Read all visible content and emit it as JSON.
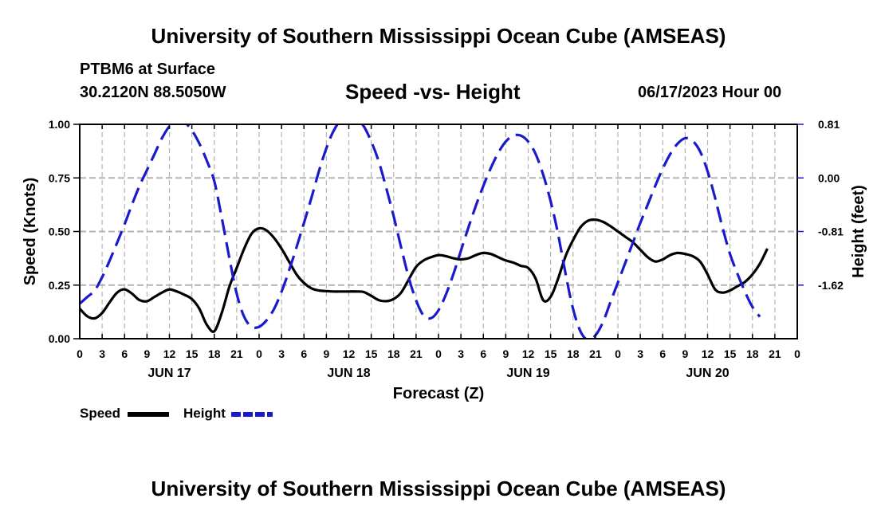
{
  "header": {
    "title": "University of Southern Mississippi Ocean Cube (AMSEAS)",
    "station": "PTBM6 at Surface",
    "coords": "30.2120N  88.5050W",
    "subtitle": "Speed -vs- Height",
    "run_time": "06/17/2023 Hour 00"
  },
  "footer": {
    "title": "University of Southern Mississippi Ocean Cube (AMSEAS)"
  },
  "legend": {
    "speed_label": "Speed",
    "height_label": "Height"
  },
  "colors": {
    "speed": "#000000",
    "height": "#1a1acc",
    "grid": "#b4b4b4"
  },
  "chart_data": {
    "type": "line",
    "title": "Speed -vs- Height",
    "xlabel": "Forecast (Z)",
    "ylabel": "Speed (Knots)",
    "y2label": "Height (feet)",
    "x_range_hours": [
      0,
      96
    ],
    "x_tick_step_hours": 3,
    "x_tick_labels": [
      "0",
      "3",
      "6",
      "9",
      "12",
      "15",
      "18",
      "21",
      "0",
      "3",
      "6",
      "9",
      "12",
      "15",
      "18",
      "21",
      "0",
      "3",
      "6",
      "9",
      "12",
      "15",
      "18",
      "21",
      "0",
      "3",
      "6",
      "9",
      "12",
      "15",
      "18",
      "21",
      "0"
    ],
    "day_labels": [
      {
        "label": "JUN 17",
        "hour": 12
      },
      {
        "label": "JUN 18",
        "hour": 36
      },
      {
        "label": "JUN 19",
        "hour": 60
      },
      {
        "label": "JUN 20",
        "hour": 84
      }
    ],
    "ylim": [
      0,
      1.0
    ],
    "y_ticks": [
      0.0,
      0.25,
      0.5,
      0.75,
      1.0
    ],
    "y_tick_labels": [
      "0.00",
      "0.25",
      "0.50",
      "0.75",
      "1.00"
    ],
    "y2_ticks": [
      -1.62,
      -0.81,
      0.0,
      0.81
    ],
    "y2_tick_labels": [
      "-1.62",
      "-0.81",
      "0.00",
      "0.81"
    ],
    "grid": true,
    "legend_position": "bottom-left",
    "series": [
      {
        "name": "Speed",
        "axis": "left",
        "style": "solid",
        "points": [
          [
            0,
            0.14
          ],
          [
            1,
            0.105
          ],
          [
            2,
            0.095
          ],
          [
            3,
            0.12
          ],
          [
            4,
            0.17
          ],
          [
            5,
            0.215
          ],
          [
            6,
            0.23
          ],
          [
            7,
            0.21
          ],
          [
            8,
            0.18
          ],
          [
            9,
            0.175
          ],
          [
            10,
            0.195
          ],
          [
            11,
            0.215
          ],
          [
            12,
            0.23
          ],
          [
            13,
            0.22
          ],
          [
            14,
            0.205
          ],
          [
            15,
            0.185
          ],
          [
            16,
            0.14
          ],
          [
            17,
            0.065
          ],
          [
            18,
            0.035
          ],
          [
            19,
            0.12
          ],
          [
            20,
            0.24
          ],
          [
            21,
            0.33
          ],
          [
            22,
            0.42
          ],
          [
            23,
            0.49
          ],
          [
            24,
            0.515
          ],
          [
            25,
            0.505
          ],
          [
            26,
            0.47
          ],
          [
            27,
            0.42
          ],
          [
            28,
            0.36
          ],
          [
            29,
            0.3
          ],
          [
            30,
            0.26
          ],
          [
            31,
            0.235
          ],
          [
            32,
            0.225
          ],
          [
            33,
            0.222
          ],
          [
            34,
            0.22
          ],
          [
            35,
            0.22
          ],
          [
            36,
            0.22
          ],
          [
            37,
            0.22
          ],
          [
            38,
            0.218
          ],
          [
            39,
            0.2
          ],
          [
            40,
            0.18
          ],
          [
            41,
            0.175
          ],
          [
            42,
            0.185
          ],
          [
            43,
            0.215
          ],
          [
            44,
            0.275
          ],
          [
            45,
            0.335
          ],
          [
            46,
            0.365
          ],
          [
            47,
            0.38
          ],
          [
            48,
            0.39
          ],
          [
            49,
            0.385
          ],
          [
            50,
            0.375
          ],
          [
            51,
            0.37
          ],
          [
            52,
            0.375
          ],
          [
            53,
            0.39
          ],
          [
            54,
            0.4
          ],
          [
            55,
            0.395
          ],
          [
            56,
            0.38
          ],
          [
            57,
            0.365
          ],
          [
            58,
            0.355
          ],
          [
            59,
            0.34
          ],
          [
            60,
            0.33
          ],
          [
            61,
            0.28
          ],
          [
            62,
            0.18
          ],
          [
            63,
            0.195
          ],
          [
            64,
            0.28
          ],
          [
            65,
            0.385
          ],
          [
            66,
            0.46
          ],
          [
            67,
            0.52
          ],
          [
            68,
            0.55
          ],
          [
            69,
            0.555
          ],
          [
            70,
            0.545
          ],
          [
            71,
            0.525
          ],
          [
            72,
            0.5
          ],
          [
            73,
            0.475
          ],
          [
            74,
            0.45
          ],
          [
            75,
            0.415
          ],
          [
            76,
            0.38
          ],
          [
            77,
            0.36
          ],
          [
            78,
            0.37
          ],
          [
            79,
            0.39
          ],
          [
            80,
            0.4
          ],
          [
            81,
            0.395
          ],
          [
            82,
            0.385
          ],
          [
            83,
            0.36
          ],
          [
            84,
            0.3
          ],
          [
            85,
            0.23
          ],
          [
            86,
            0.215
          ],
          [
            87,
            0.225
          ],
          [
            88,
            0.245
          ],
          [
            89,
            0.265
          ],
          [
            90,
            0.3
          ],
          [
            91,
            0.35
          ],
          [
            92,
            0.42
          ]
        ]
      },
      {
        "name": "Height",
        "axis": "right",
        "style": "dashed",
        "points": [
          [
            0,
            -1.9
          ],
          [
            1,
            -1.8
          ],
          [
            2,
            -1.7
          ],
          [
            3,
            -1.5
          ],
          [
            4,
            -1.25
          ],
          [
            5,
            -0.98
          ],
          [
            6,
            -0.7
          ],
          [
            7,
            -0.4
          ],
          [
            8,
            -0.12
          ],
          [
            9,
            0.12
          ],
          [
            10,
            0.36
          ],
          [
            11,
            0.6
          ],
          [
            12,
            0.78
          ],
          [
            13,
            0.86
          ],
          [
            14,
            0.84
          ],
          [
            15,
            0.72
          ],
          [
            16,
            0.52
          ],
          [
            17,
            0.26
          ],
          [
            18,
            -0.05
          ],
          [
            19,
            -0.6
          ],
          [
            20,
            -1.2
          ],
          [
            21,
            -1.75
          ],
          [
            22,
            -2.1
          ],
          [
            23,
            -2.25
          ],
          [
            24,
            -2.25
          ],
          [
            25,
            -2.15
          ],
          [
            26,
            -1.98
          ],
          [
            27,
            -1.72
          ],
          [
            28,
            -1.4
          ],
          [
            29,
            -1.05
          ],
          [
            30,
            -0.68
          ],
          [
            31,
            -0.3
          ],
          [
            32,
            0.1
          ],
          [
            33,
            0.45
          ],
          [
            34,
            0.72
          ],
          [
            35,
            0.88
          ],
          [
            36,
            0.93
          ],
          [
            37,
            0.9
          ],
          [
            38,
            0.78
          ],
          [
            39,
            0.55
          ],
          [
            40,
            0.25
          ],
          [
            41,
            -0.15
          ],
          [
            42,
            -0.58
          ],
          [
            43,
            -1.05
          ],
          [
            44,
            -1.5
          ],
          [
            45,
            -1.85
          ],
          [
            46,
            -2.08
          ],
          [
            47,
            -2.12
          ],
          [
            48,
            -2.0
          ],
          [
            49,
            -1.76
          ],
          [
            50,
            -1.45
          ],
          [
            51,
            -1.1
          ],
          [
            52,
            -0.75
          ],
          [
            53,
            -0.42
          ],
          [
            54,
            -0.12
          ],
          [
            55,
            0.15
          ],
          [
            56,
            0.38
          ],
          [
            57,
            0.55
          ],
          [
            58,
            0.64
          ],
          [
            59,
            0.64
          ],
          [
            60,
            0.55
          ],
          [
            61,
            0.36
          ],
          [
            62,
            0.05
          ],
          [
            63,
            -0.35
          ],
          [
            64,
            -0.85
          ],
          [
            65,
            -1.45
          ],
          [
            66,
            -1.98
          ],
          [
            67,
            -2.32
          ],
          [
            68,
            -2.45
          ],
          [
            69,
            -2.38
          ],
          [
            70,
            -2.18
          ],
          [
            71,
            -1.88
          ],
          [
            72,
            -1.58
          ],
          [
            73,
            -1.28
          ],
          [
            74,
            -0.98
          ],
          [
            75,
            -0.68
          ],
          [
            76,
            -0.4
          ],
          [
            77,
            -0.12
          ],
          [
            78,
            0.14
          ],
          [
            79,
            0.36
          ],
          [
            80,
            0.52
          ],
          [
            81,
            0.6
          ],
          [
            82,
            0.56
          ],
          [
            83,
            0.4
          ],
          [
            84,
            0.1
          ],
          [
            85,
            -0.3
          ],
          [
            86,
            -0.75
          ],
          [
            87,
            -1.15
          ],
          [
            88,
            -1.45
          ],
          [
            89,
            -1.72
          ],
          [
            90,
            -1.95
          ],
          [
            91,
            -2.1
          ]
        ]
      }
    ]
  }
}
